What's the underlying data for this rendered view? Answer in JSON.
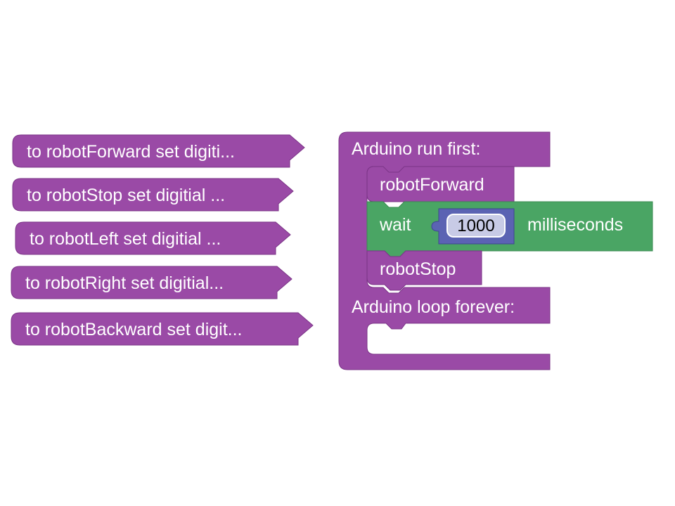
{
  "colors": {
    "procedure": "#9a4aa6",
    "procedure_dark": "#7b3487",
    "math": "#5b63b3",
    "math_dark": "#3f4590",
    "time": "#4aa564",
    "time_dark": "#3a8a50",
    "number_field": "#c8cbe6"
  },
  "procedures": [
    {
      "label": "to robotForward  set digiti..."
    },
    {
      "label": "to robotStop  set digitial ..."
    },
    {
      "label": "to robotLeft  set digitial ..."
    },
    {
      "label": "to robotRight  set digitial..."
    },
    {
      "label": "to robotBackward  set digit..."
    }
  ],
  "arduino": {
    "setup_label": "Arduino run first:",
    "loop_label": "Arduino loop forever:",
    "call_forward": "robotForward",
    "wait_label": "wait",
    "wait_value": "1000",
    "wait_units": "milliseconds",
    "call_stop": "robotStop"
  }
}
